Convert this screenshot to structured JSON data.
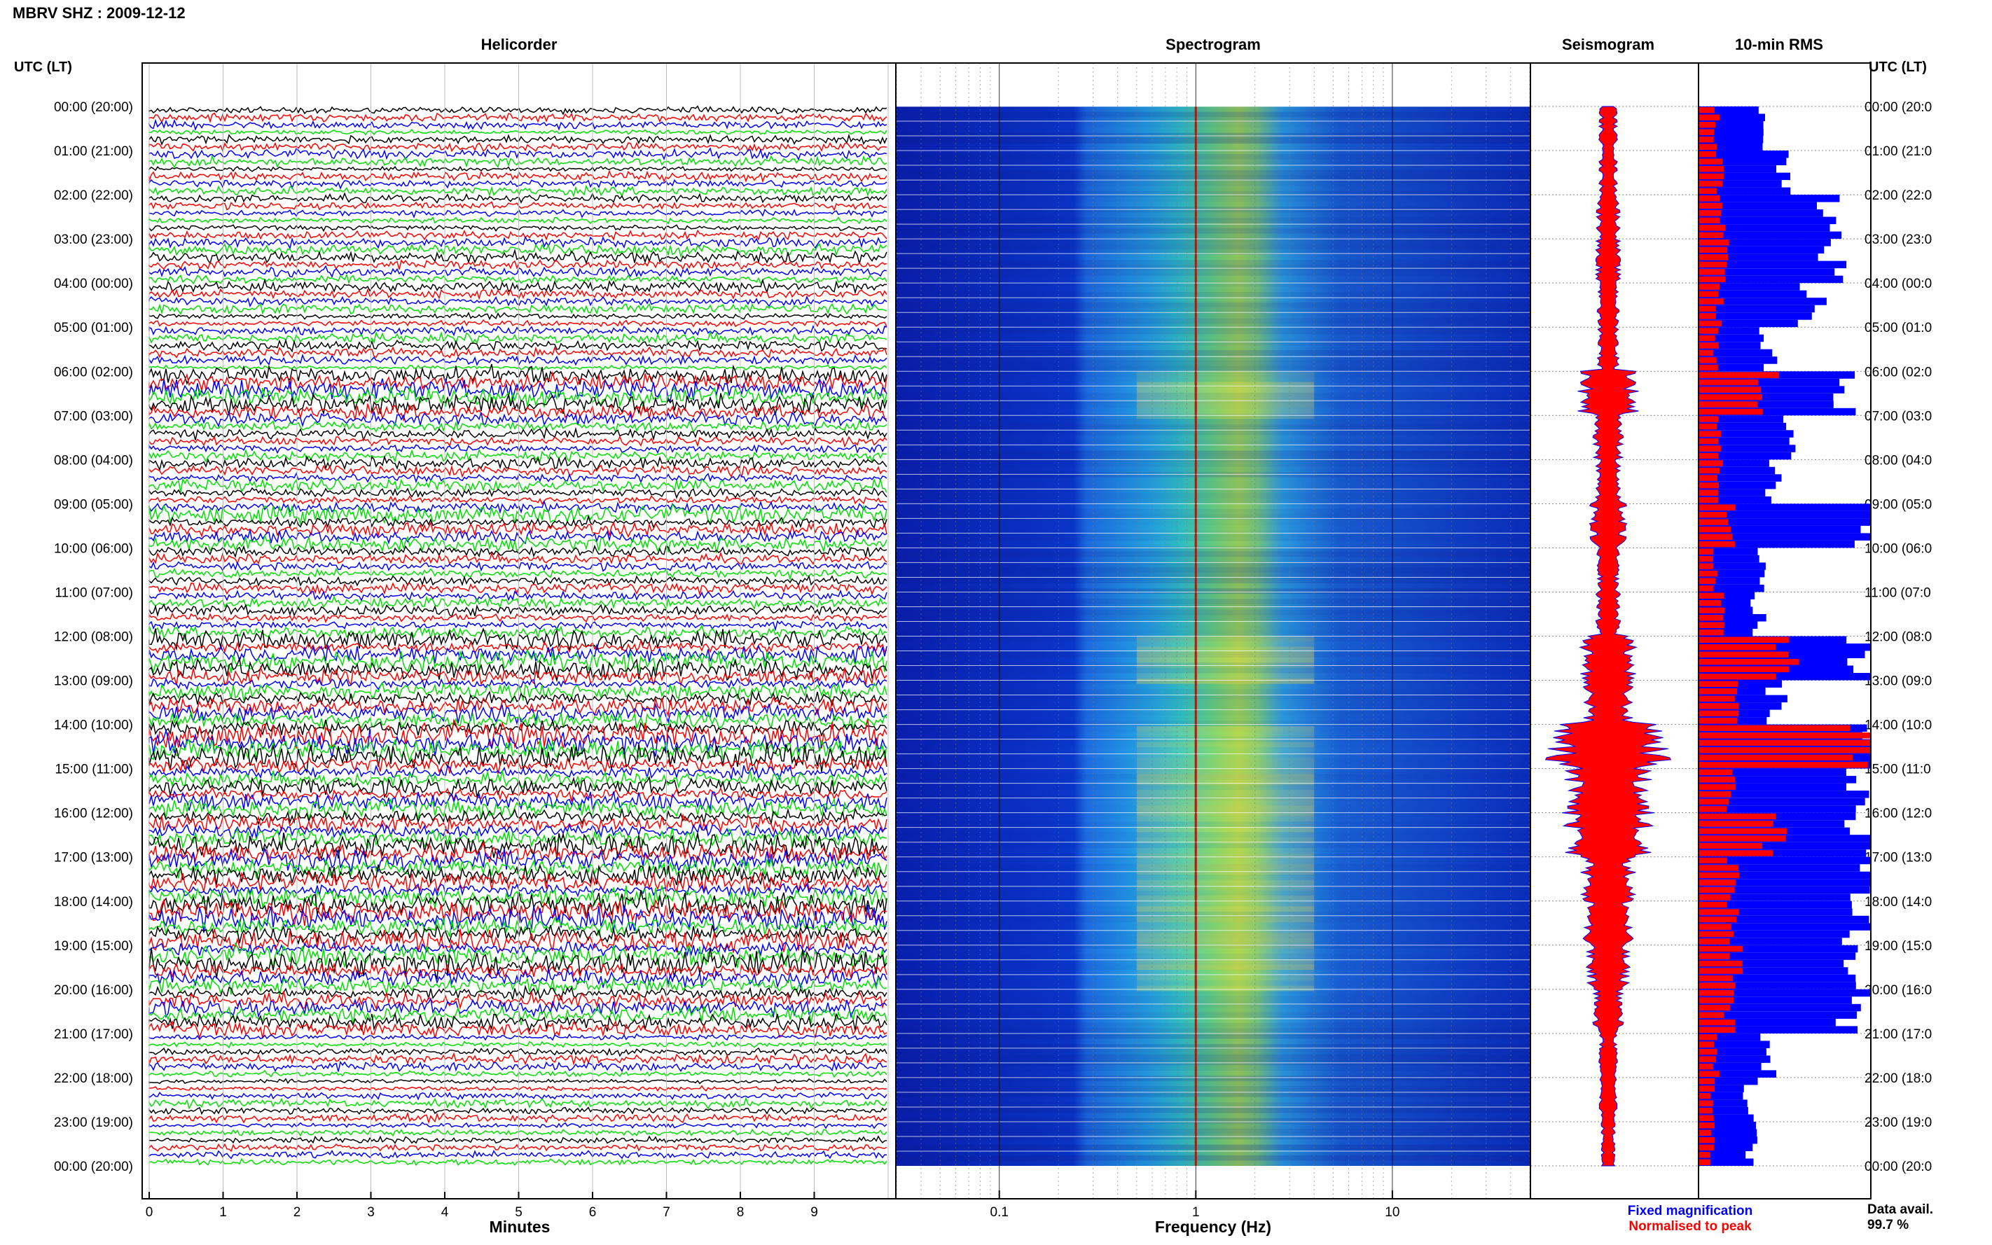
{
  "header": {
    "title": "MBRV SHZ : 2009-12-12"
  },
  "utc_label_left": "UTC (LT)",
  "utc_label_right": "UTC (LT)",
  "panels": {
    "helicorder": "Helicorder",
    "spectrogram": "Spectrogram",
    "seismogram": "Seismogram",
    "rms": "10-min RMS"
  },
  "time_labels": [
    "00:00 (20:00)",
    "01:00 (21:00)",
    "02:00 (22:00)",
    "03:00 (23:00)",
    "04:00 (00:00)",
    "05:00 (01:00)",
    "06:00 (02:00)",
    "07:00 (03:00)",
    "08:00 (04:00)",
    "09:00 (05:00)",
    "10:00 (06:00)",
    "11:00 (07:00)",
    "12:00 (08:00)",
    "13:00 (09:00)",
    "14:00 (10:00)",
    "15:00 (11:00)",
    "16:00 (12:00)",
    "17:00 (13:00)",
    "18:00 (14:00)",
    "19:00 (15:00)",
    "20:00 (16:00)",
    "21:00 (17:00)",
    "22:00 (18:00)",
    "23:00 (19:00)",
    "00:00 (20:00)"
  ],
  "time_labels_right": [
    "00:00 (20:0",
    "01:00 (21:0",
    "02:00 (22:0",
    "03:00 (23:0",
    "04:00 (00:0",
    "05:00 (01:0",
    "06:00 (02:0",
    "07:00 (03:0",
    "08:00 (04:0",
    "09:00 (05:0",
    "10:00 (06:0",
    "11:00 (07:0",
    "12:00 (08:0",
    "13:00 (09:0",
    "14:00 (10:0",
    "15:00 (11:0",
    "16:00 (12:0",
    "17:00 (13:0",
    "18:00 (14:0",
    "19:00 (15:0",
    "20:00 (16:0",
    "21:00 (17:0",
    "22:00 (18:0",
    "23:00 (19:0",
    "00:00 (20:0"
  ],
  "footer": {
    "minutes_label": "Minutes",
    "frequency_label": "Frequency (Hz)",
    "fixed_magnification": "Fixed magnification",
    "normalised_to_peak": "Normalised to peak",
    "data_avail_label": "Data avail.",
    "data_avail_value": "99.7 %"
  },
  "colors": {
    "helicorder_traces": [
      "#000000",
      "#ff0000",
      "#0000ff",
      "#00e000"
    ],
    "fixed": "#0000ff",
    "normalised": "#ff0000"
  },
  "chart_data": [
    {
      "type": "helicorder",
      "x_ticks": [
        "0",
        "1",
        "2",
        "3",
        "4",
        "5",
        "6",
        "7",
        "8",
        "9"
      ],
      "xlim": [
        0,
        10
      ],
      "lines_per_hour": 6,
      "hours": 24,
      "activity_by_hour": [
        1,
        1.2,
        1.4,
        1.5,
        1.4,
        1.2,
        2.6,
        1.6,
        1.8,
        2.4,
        1.3,
        1.4,
        2.6,
        2.2,
        3.5,
        3.0,
        3.2,
        3.3,
        3.0,
        3.3,
        2.2,
        1.2,
        1.1,
        1.0
      ]
    },
    {
      "type": "heatmap",
      "x_scale": "log",
      "xlim": [
        0.03,
        50
      ],
      "x_ticks": [
        0.1,
        1,
        10
      ],
      "x_tick_labels": [
        "0.1",
        "1",
        "10"
      ],
      "dominant_peak_hz": 1.0
    },
    {
      "type": "area",
      "name": "seismogram_envelope",
      "amplitude_by_hour": [
        0.15,
        0.15,
        0.2,
        0.2,
        0.18,
        0.18,
        0.5,
        0.25,
        0.2,
        0.3,
        0.18,
        0.2,
        0.45,
        0.4,
        1.0,
        0.7,
        0.75,
        0.45,
        0.4,
        0.35,
        0.25,
        0.15,
        0.15,
        0.12
      ]
    },
    {
      "type": "bar",
      "name": "10-min RMS",
      "fixed_magnification_by_hour": [
        0.35,
        0.5,
        0.78,
        0.78,
        0.65,
        0.4,
        0.9,
        0.5,
        0.45,
        0.98,
        0.4,
        0.35,
        0.98,
        0.45,
        1.0,
        0.98,
        0.98,
        0.98,
        0.98,
        0.95,
        0.9,
        0.4,
        0.3,
        0.3
      ],
      "normalised_to_peak_by_hour": [
        0.1,
        0.12,
        0.15,
        0.15,
        0.12,
        0.1,
        0.4,
        0.12,
        0.12,
        0.2,
        0.1,
        0.15,
        0.5,
        0.25,
        1.0,
        0.2,
        0.45,
        0.2,
        0.2,
        0.22,
        0.18,
        0.1,
        0.08,
        0.08
      ]
    }
  ]
}
